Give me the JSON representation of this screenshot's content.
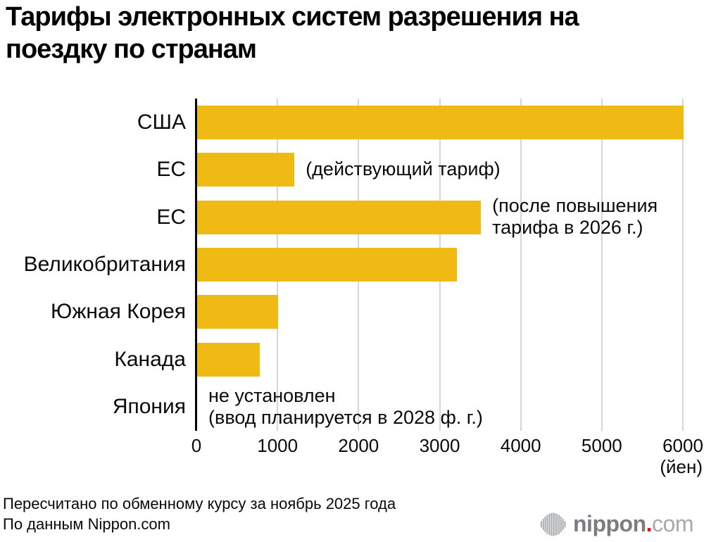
{
  "title": "Тарифы электронных систем разрешения на\nпоездку по странам",
  "chart_data": {
    "type": "bar",
    "orientation": "horizontal",
    "title": "Тарифы электронных систем разрешения на поездку по странам",
    "categories": [
      "США",
      "ЕС",
      "ЕС",
      "Великобритания",
      "Южная Корея",
      "Канада",
      "Япония"
    ],
    "values": [
      6000,
      1200,
      3500,
      3200,
      1000,
      770,
      null
    ],
    "annotations": [
      {
        "row_index": 1,
        "text": "(действующий тариф)"
      },
      {
        "row_index": 2,
        "text": "(после повышения\nтарифа в 2026 г.)"
      },
      {
        "row_index": 6,
        "text": "не установлен\n(ввод планируется в 2028 ф. г.)"
      }
    ],
    "xlim": [
      0,
      6000
    ],
    "xticks": [
      0,
      1000,
      2000,
      3000,
      4000,
      5000,
      6000
    ],
    "xlabel_unit": "(йен)",
    "grid": true,
    "legend": "none",
    "bar_color": "#EFBA14",
    "gridline_color": "#D6D6D6",
    "axis_color": "#000000"
  },
  "footer": {
    "line1": "Пересчитано по обменному курсу за ноябрь 2025 года",
    "line2": "По данным Nippon.com"
  },
  "logo": {
    "name": "nippon",
    "dot": ".",
    "tld": "com",
    "name_color": "#7A7E82",
    "dot_color": "#E60012",
    "tld_color": "#A6AAAD",
    "icon_color": "#9B9FA2"
  }
}
